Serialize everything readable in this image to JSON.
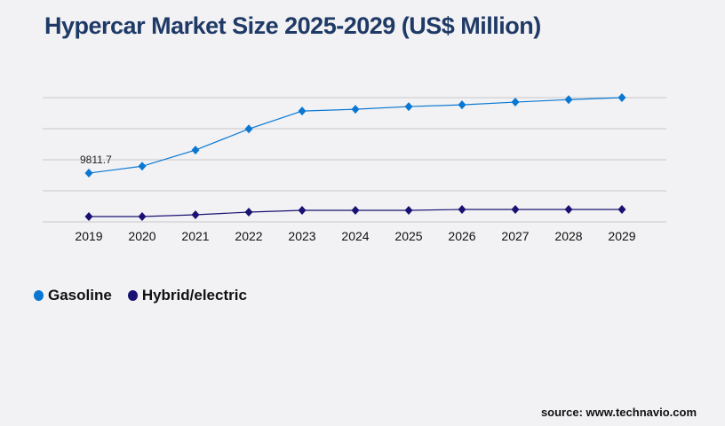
{
  "chart_data": {
    "type": "line",
    "title": "Hypercar Market Size 2025-2029 (US$ Million)",
    "categories": [
      "2019",
      "2020",
      "2021",
      "2022",
      "2023",
      "2024",
      "2025",
      "2026",
      "2027",
      "2028",
      "2029"
    ],
    "series": [
      {
        "name": "Gasoline",
        "color": "#0a78d2",
        "values": [
          9811.7,
          11200,
          14450,
          18700,
          22300,
          22650,
          23200,
          23550,
          24100,
          24600,
          25000
        ]
      },
      {
        "name": "Hybrid/electric",
        "color": "#1a1272",
        "values": [
          1070,
          1070,
          1430,
          1960,
          2320,
          2320,
          2320,
          2500,
          2500,
          2500,
          2500
        ]
      }
    ],
    "annotations": [
      {
        "series": "Gasoline",
        "category": "2019",
        "label": "9811.7"
      }
    ],
    "ylim": [
      0,
      25000
    ],
    "yticks": [
      0,
      6250,
      12500,
      18750,
      25000
    ],
    "y_tick_labels_shown": false,
    "grid": true,
    "legend_position": "bottom-left",
    "xlabel": "",
    "ylabel": ""
  },
  "source": "source: www.technavio.com"
}
